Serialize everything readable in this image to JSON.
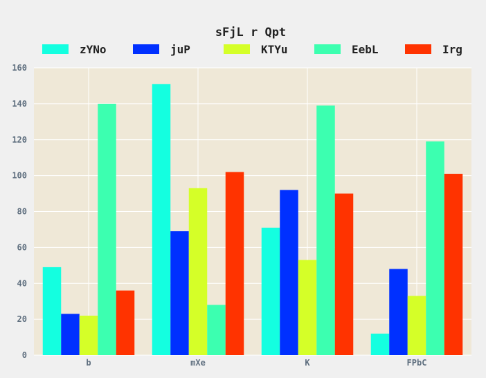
{
  "chart_data": {
    "type": "bar",
    "title": "sFjL r Qpt",
    "xlabel": "",
    "ylabel": "",
    "categories": [
      "b",
      "mXe",
      "K",
      "FPbC"
    ],
    "series": [
      {
        "name": "zYNo",
        "color": "#14ffe0",
        "values": [
          49,
          151,
          71,
          12
        ]
      },
      {
        "name": "juP",
        "color": "#0030ff",
        "values": [
          23,
          69,
          92,
          48
        ]
      },
      {
        "name": "KTYu",
        "color": "#d5ff28",
        "values": [
          22,
          93,
          53,
          33
        ]
      },
      {
        "name": "EebL",
        "color": "#3cffb0",
        "values": [
          140,
          28,
          139,
          119
        ]
      },
      {
        "name": "Irg",
        "color": "#ff3300",
        "values": [
          36,
          102,
          90,
          101
        ]
      }
    ],
    "ylim": [
      0,
      160
    ],
    "yticks": [
      0,
      20,
      40,
      60,
      80,
      100,
      120,
      140,
      160
    ],
    "grid": true,
    "legend_position": "top",
    "plot_background": "#efe8d7",
    "figure_background": "#f0f0f0"
  }
}
